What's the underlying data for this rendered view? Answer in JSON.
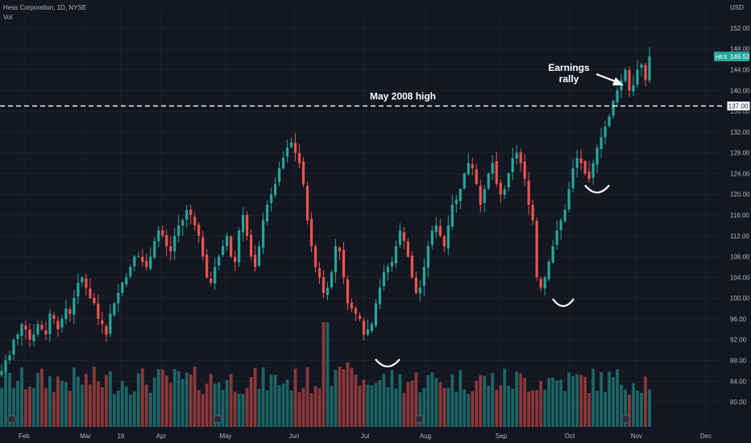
{
  "header": {
    "title": "Hess Corporation, 1D, NYSE",
    "vol_label": "Vol",
    "currency": "USD"
  },
  "ticker": {
    "symbol": "HES",
    "price": "146.53"
  },
  "colors": {
    "background": "#131722",
    "up": "#26a69a",
    "down": "#ef5350",
    "text": "#b2b5be",
    "grid": "#1e222d"
  },
  "chart_data": {
    "type": "candlestick",
    "y_ticks": [
      "152.00",
      "148.00",
      "144.00",
      "140.00",
      "136.00",
      "132.00",
      "128.00",
      "124.00",
      "120.00",
      "116.00",
      "112.00",
      "108.00",
      "104.00",
      "100.00",
      "96.00",
      "92.00",
      "88.00",
      "84.00",
      "80.00"
    ],
    "x_ticks": [
      "Feb",
      "Mar",
      "16",
      "Apr",
      "May",
      "Jun",
      "Jul",
      "Aug",
      "Sep",
      "Oct",
      "Nov",
      "Dec"
    ],
    "ylim": [
      78,
      154
    ],
    "reference_line": {
      "value": 137,
      "label": "137.00"
    },
    "annotations": [
      {
        "text": "May 2008 high"
      },
      {
        "text": "Earnings rally"
      }
    ],
    "series": [
      {
        "name": "HES",
        "close": [
          86,
          88,
          89,
          92,
          93,
          95,
          94,
          92,
          93,
          95,
          94,
          93,
          97,
          96,
          94,
          96,
          98,
          97,
          100,
          103,
          104,
          102,
          100,
          99,
          96,
          95,
          93,
          97,
          99,
          101,
          103,
          104,
          106,
          108,
          108,
          107,
          106,
          108,
          111,
          113,
          112,
          110,
          109,
          112,
          114,
          115,
          117,
          116,
          114,
          112,
          108,
          104,
          103,
          106,
          108,
          110,
          112,
          108,
          107,
          113,
          116,
          112,
          108,
          106,
          110,
          115,
          118,
          120,
          122,
          125,
          127,
          129,
          130,
          128,
          126,
          122,
          115,
          110,
          106,
          104,
          101,
          102,
          105,
          110,
          109,
          104,
          99,
          98,
          97,
          96,
          93,
          94,
          95,
          99,
          102,
          105,
          106,
          107,
          110,
          113,
          111,
          108,
          104,
          101,
          102,
          106,
          110,
          113,
          114,
          112,
          110,
          114,
          118,
          119,
          121,
          124,
          126,
          125,
          122,
          118,
          121,
          124,
          126,
          122,
          120,
          121,
          124,
          127,
          128,
          126,
          123,
          118,
          115,
          104,
          102,
          104,
          107,
          110,
          113,
          115,
          117,
          121,
          125,
          127,
          126,
          124,
          123,
          126,
          129,
          131,
          133,
          135,
          138,
          140,
          142,
          144,
          140,
          141,
          144,
          145,
          142,
          146.53
        ]
      }
    ],
    "volume": {
      "note": "volume bars"
    }
  }
}
